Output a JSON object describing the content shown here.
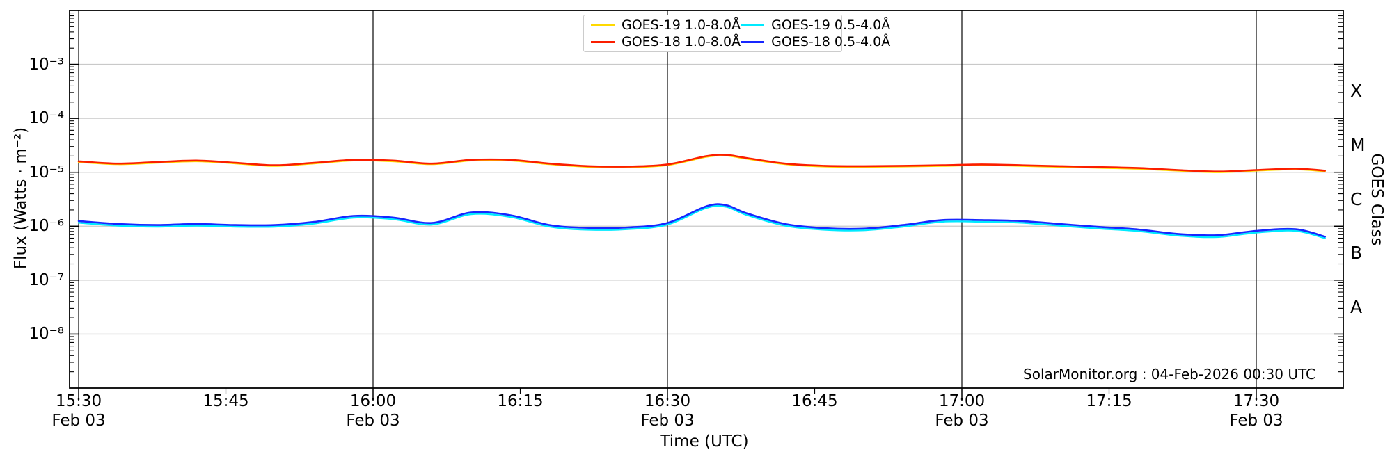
{
  "chart_data": {
    "type": "line",
    "title": "",
    "xlabel": "Time (UTC)",
    "ylabel": "Flux (Watts · m⁻²)",
    "y2label": "GOES Class",
    "x_axis": {
      "unit": "minutes since 15:30 UTC on Feb 03",
      "range_minutes": [
        0,
        129
      ],
      "ticks": [
        {
          "min": 0,
          "label": "15:30",
          "date": "Feb 03",
          "major": true
        },
        {
          "min": 15,
          "label": "15:45",
          "date": "",
          "major": false
        },
        {
          "min": 30,
          "label": "16:00",
          "date": "Feb 03",
          "major": true
        },
        {
          "min": 45,
          "label": "16:15",
          "date": "",
          "major": false
        },
        {
          "min": 60,
          "label": "16:30",
          "date": "Feb 03",
          "major": true
        },
        {
          "min": 75,
          "label": "16:45",
          "date": "",
          "major": false
        },
        {
          "min": 90,
          "label": "17:00",
          "date": "Feb 03",
          "major": true
        },
        {
          "min": 105,
          "label": "17:15",
          "date": "",
          "major": false
        },
        {
          "min": 120,
          "label": "17:30",
          "date": "Feb 03",
          "major": true
        }
      ]
    },
    "y_axis": {
      "scale": "log",
      "ylim": [
        1e-09,
        0.01
      ],
      "ticks": [
        {
          "exp": -3,
          "label": "10⁻³"
        },
        {
          "exp": -4,
          "label": "10⁻⁴"
        },
        {
          "exp": -5,
          "label": "10⁻⁵"
        },
        {
          "exp": -6,
          "label": "10⁻⁶"
        },
        {
          "exp": -7,
          "label": "10⁻⁷"
        },
        {
          "exp": -8,
          "label": "10⁻⁸"
        }
      ],
      "grid": "horizontal light-gray line at each labeled decade"
    },
    "goes_class_labels": [
      {
        "label": "X",
        "exp": -3.5
      },
      {
        "label": "M",
        "exp": -4.5
      },
      {
        "label": "C",
        "exp": -5.5
      },
      {
        "label": "B",
        "exp": -6.5
      },
      {
        "label": "A",
        "exp": -7.5
      }
    ],
    "vertical_gridlines_at_minutes": [
      0,
      30,
      60,
      90,
      120
    ],
    "x_minutes": [
      0,
      4,
      8,
      12,
      16,
      20,
      24,
      28,
      32,
      36,
      40,
      44,
      48,
      52,
      56,
      60,
      64,
      66,
      68,
      72,
      76,
      80,
      84,
      88,
      92,
      96,
      100,
      104,
      108,
      112,
      116,
      120,
      124,
      127
    ],
    "series": [
      {
        "name": "GOES-19 1.0-8.0Å",
        "color": "#ffd900",
        "width": 2.4,
        "values": [
          1.55e-05,
          1.41e-05,
          1.5e-05,
          1.6e-05,
          1.46e-05,
          1.31e-05,
          1.46e-05,
          1.65e-05,
          1.6e-05,
          1.41e-05,
          1.65e-05,
          1.65e-05,
          1.41e-05,
          1.26e-05,
          1.24e-05,
          1.36e-05,
          1.94e-05,
          2.04e-05,
          1.79e-05,
          1.41e-05,
          1.28e-05,
          1.26e-05,
          1.28e-05,
          1.31e-05,
          1.36e-05,
          1.31e-05,
          1.26e-05,
          1.21e-05,
          1.16e-05,
          1.07e-05,
          1e-05,
          1.07e-05,
          1.13e-05,
          1.04e-05
        ]
      },
      {
        "name": "GOES-18 1.0-8.0Å",
        "color": "#fb1e00",
        "width": 2.6,
        "values": [
          1.6e-05,
          1.45e-05,
          1.55e-05,
          1.65e-05,
          1.5e-05,
          1.35e-05,
          1.5e-05,
          1.7e-05,
          1.65e-05,
          1.45e-05,
          1.7e-05,
          1.7e-05,
          1.45e-05,
          1.3e-05,
          1.28e-05,
          1.4e-05,
          2e-05,
          2.1e-05,
          1.85e-05,
          1.45e-05,
          1.32e-05,
          1.3e-05,
          1.32e-05,
          1.35e-05,
          1.4e-05,
          1.35e-05,
          1.3e-05,
          1.25e-05,
          1.2e-05,
          1.1e-05,
          1.03e-05,
          1.1e-05,
          1.17e-05,
          1.07e-05
        ]
      },
      {
        "name": "GOES-19 0.5-4.0Å",
        "color": "#00eaff",
        "width": 2.4,
        "values": [
          1.16e-06,
          1.02e-06,
          9.8e-07,
          1.02e-06,
          9.8e-07,
          9.8e-07,
          1.12e-06,
          1.44e-06,
          1.35e-06,
          1.07e-06,
          1.67e-06,
          1.49e-06,
          9.8e-07,
          8.6e-07,
          8.8e-07,
          1.07e-06,
          2.19e-06,
          2.28e-06,
          1.63e-06,
          1.02e-06,
          8.6e-07,
          8.4e-07,
          9.8e-07,
          1.21e-06,
          1.21e-06,
          1.16e-06,
          1.02e-06,
          9e-07,
          8.1e-07,
          6.7e-07,
          6.3e-07,
          7.6e-07,
          8.2e-07,
          6e-07
        ]
      },
      {
        "name": "GOES-18 0.5-4.0Å",
        "color": "#1726ff",
        "width": 2.6,
        "values": [
          1.25e-06,
          1.1e-06,
          1.05e-06,
          1.1e-06,
          1.05e-06,
          1.05e-06,
          1.2e-06,
          1.55e-06,
          1.45e-06,
          1.15e-06,
          1.8e-06,
          1.6e-06,
          1.05e-06,
          9.3e-07,
          9.5e-07,
          1.15e-06,
          2.35e-06,
          2.45e-06,
          1.75e-06,
          1.1e-06,
          9.2e-07,
          9e-07,
          1.05e-06,
          1.3e-06,
          1.3e-06,
          1.25e-06,
          1.1e-06,
          9.7e-07,
          8.7e-07,
          7.2e-07,
          6.8e-07,
          8.2e-07,
          8.8e-07,
          6.4e-07
        ]
      }
    ],
    "legend": {
      "position": "top center, two columns",
      "entries": [
        "GOES-19 1.0-8.0Å",
        "GOES-18 1.0-8.0Å",
        "GOES-19 0.5-4.0Å",
        "GOES-18 0.5-4.0Å"
      ]
    },
    "annotations": [
      {
        "text": "SolarMonitor.org : 04-Feb-2026 00:30 UTC",
        "position": "bottom right inside plot"
      }
    ]
  },
  "labels": {
    "xlabel": "Time (UTC)",
    "ylabel": "Flux (Watts · m⁻²)",
    "y2label": "GOES Class",
    "attribution": "SolarMonitor.org : 04-Feb-2026 00:30 UTC"
  },
  "colors": {
    "background": "#ffffff",
    "spine": "#000000",
    "decade_gridline": "#c9c9c9",
    "vertical_gridline": "#1a1a1a",
    "legend_border": "#cccccc"
  }
}
